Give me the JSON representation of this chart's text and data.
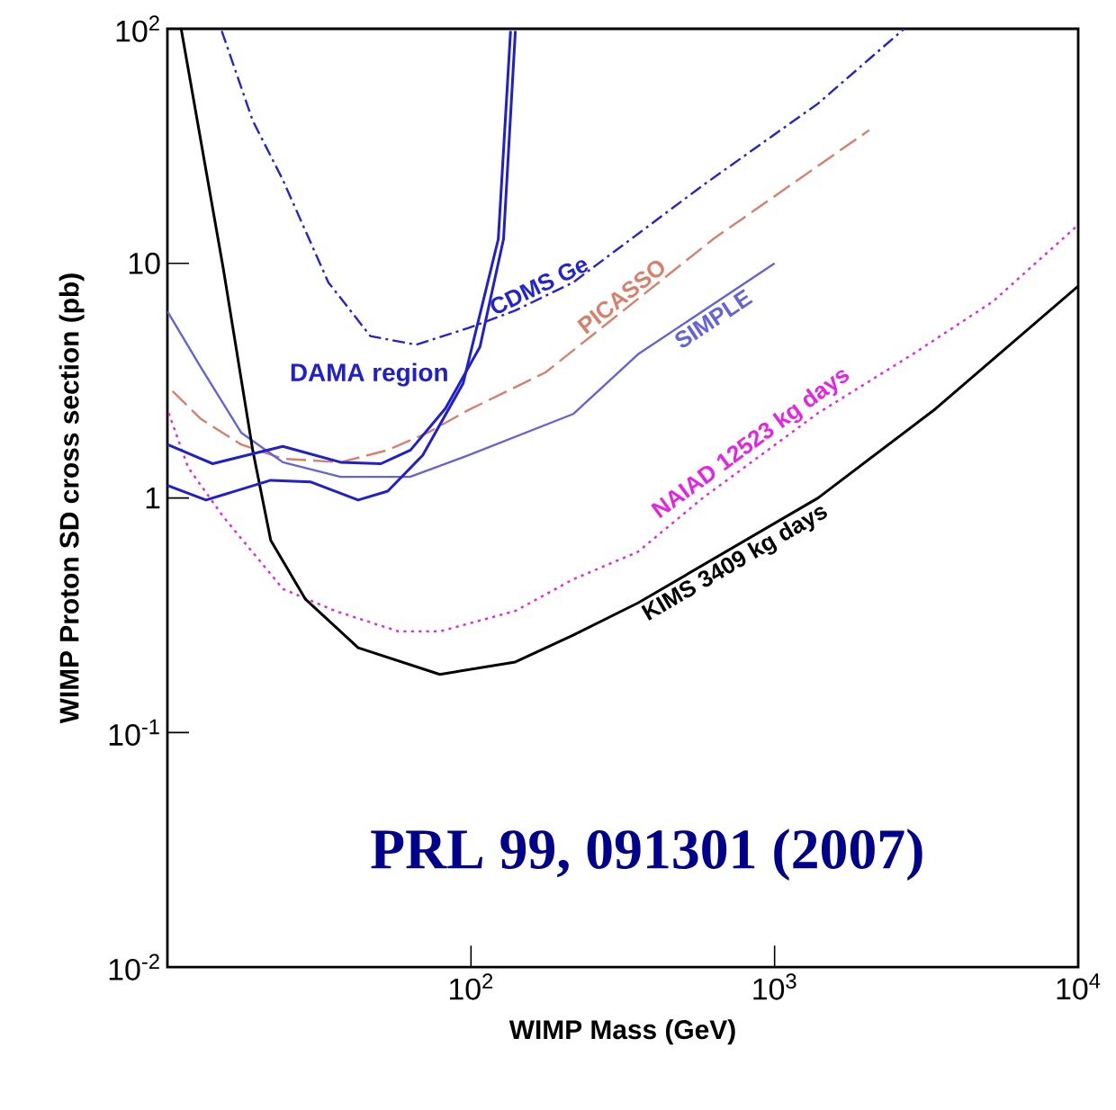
{
  "chart_data": {
    "type": "line",
    "xlabel": "WIMP Mass (GeV)",
    "ylabel": "WIMP Proton SD cross section (pb)",
    "log": "xy",
    "xlim": [
      10,
      10000
    ],
    "ylim": [
      0.01,
      100
    ],
    "xticks": [
      {
        "value": 100,
        "label": "10$^{2}$"
      },
      {
        "value": 1000,
        "label": "10$^{3}$"
      },
      {
        "value": 10000,
        "label": "10$^{4}$"
      }
    ],
    "yticks": [
      {
        "value": 0.01,
        "label": "10$^{-2}$"
      },
      {
        "value": 0.1,
        "label": "10$^{-1}$"
      },
      1,
      10,
      {
        "value": 100,
        "label": "10$^{2}$"
      }
    ],
    "series": [
      {
        "name": "CDMS Ge",
        "color": "#2323d4",
        "line_style": "dashdot",
        "x": [
          15.1,
          19.1,
          24,
          33.9,
          46.6,
          65.8,
          98,
          140,
          217,
          580,
          1390,
          2670
        ],
        "values": [
          98,
          40.6,
          22.7,
          8.3,
          4.9,
          4.5,
          5.3,
          6.3,
          8.3,
          21.5,
          48,
          100
        ]
      },
      {
        "name": "PICASSO",
        "color": "#d9806c",
        "line_style": "dashed",
        "x": [
          10,
          12.9,
          17.5,
          24,
          37.2,
          53.2,
          72.2,
          98,
          176,
          628,
          2050
        ],
        "values": [
          3.0,
          2.17,
          1.69,
          1.47,
          1.42,
          1.6,
          1.9,
          2.37,
          3.43,
          12.7,
          37
        ]
      },
      {
        "name": "SIMPLE",
        "color": "#6464d8",
        "line_style": "solid",
        "x": [
          10,
          12.9,
          17.5,
          24,
          37.2,
          63,
          98,
          217,
          355,
          1000
        ],
        "values": [
          6.25,
          3.6,
          1.9,
          1.42,
          1.23,
          1.23,
          1.52,
          2.28,
          4.1,
          10
        ]
      },
      {
        "name": "NAIAD 12523 kg days",
        "color": "#e622e6",
        "line_style": "dotted",
        "x": [
          10.1,
          11.7,
          15.3,
          24,
          35.7,
          57.7,
          79,
          140,
          217,
          355,
          580,
          1390,
          2850,
          5250,
          10000
        ],
        "values": [
          2.3,
          1.35,
          0.83,
          0.41,
          0.33,
          0.27,
          0.27,
          0.33,
          0.45,
          0.59,
          1.0,
          2.3,
          4.1,
          6.9,
          14.6
        ]
      },
      {
        "name": "KIMS 3409 kg days",
        "color": "#000000",
        "line_style": "solid",
        "x": [
          11.1,
          15.3,
          19.1,
          21.9,
          28.5,
          42.5,
          79,
          140,
          217,
          355,
          1390,
          3390,
          10000
        ],
        "values": [
          100,
          9.4,
          1.6,
          0.66,
          0.37,
          0.23,
          0.177,
          0.2,
          0.26,
          0.357,
          1.0,
          2.4,
          8.0
        ]
      },
      {
        "name": "DAMA region",
        "color": "#1f1fcf",
        "line_style": "solid",
        "x": [
          10,
          14.1,
          24,
          37.2,
          50.5,
          63.2,
          82.4,
          107,
          128,
          140
        ],
        "values": [
          1.69,
          1.4,
          1.66,
          1.42,
          1.4,
          1.6,
          2.41,
          4.4,
          12.7,
          98
        ]
      },
      {
        "color": "#1f1fcf",
        "line_style": "solid",
        "x": [
          10,
          13.4,
          21.9,
          29.7,
          42.5,
          53.2,
          69.3,
          94.2,
          123,
          135
        ],
        "values": [
          1.13,
          0.98,
          1.19,
          1.17,
          0.98,
          1.07,
          1.52,
          3.08,
          12.7,
          98
        ]
      }
    ],
    "annotations": [
      "PRL 99, 091301 (2007)"
    ]
  }
}
